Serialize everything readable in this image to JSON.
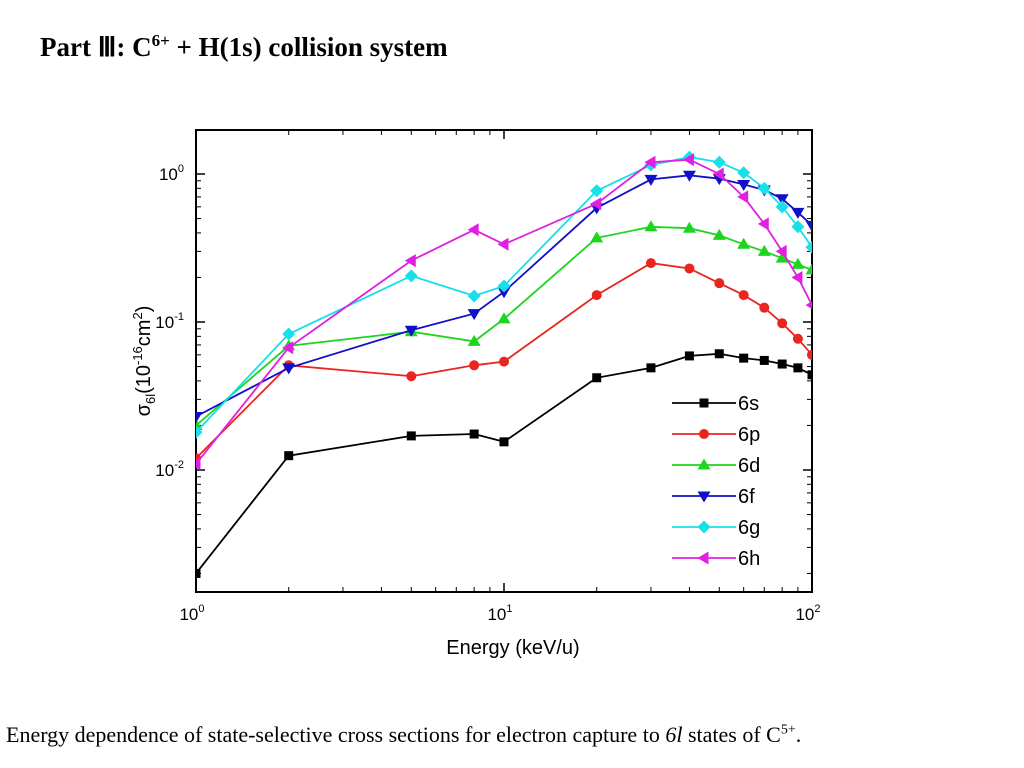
{
  "title": {
    "prefix": "Part Ⅲ: C",
    "sup": "6+",
    "suffix": " + H(1s) collision system"
  },
  "caption": {
    "prefix": "Energy dependence of state-selective cross sections for electron capture to ",
    "italic": "6l",
    "middle": " states of C",
    "sup": "5+",
    "suffix": "."
  },
  "chart_data": {
    "type": "line",
    "xscale": "log",
    "yscale": "log",
    "xlim": [
      1,
      100
    ],
    "ylim": [
      0.0015,
      2
    ],
    "xticks": [
      {
        "base": "10",
        "exp": "0"
      },
      {
        "base": "10",
        "exp": "1"
      },
      {
        "base": "10",
        "exp": "2"
      }
    ],
    "yticks": [
      {
        "base": "10",
        "exp": "0"
      },
      {
        "base": "10",
        "exp": "-1"
      },
      {
        "base": "10",
        "exp": "-2"
      }
    ],
    "xlabel": "Energy (keV/u)",
    "ylabel": {
      "sigma": "σ",
      "sub": "6l",
      "open": "(10",
      "exp": "-16",
      "unit": "cm",
      "unit_exp": "2",
      "close": ")"
    },
    "legend_position": "bottom-right",
    "grid": false,
    "series": [
      {
        "name": "6s",
        "color": "#000000",
        "marker": "square",
        "x": [
          1,
          2,
          5,
          8,
          10,
          20,
          30,
          40,
          50,
          60,
          70,
          80,
          90,
          100
        ],
        "y": [
          0.002,
          0.0125,
          0.017,
          0.0175,
          0.0155,
          0.042,
          0.049,
          0.059,
          0.061,
          0.057,
          0.055,
          0.052,
          0.049,
          0.044
        ]
      },
      {
        "name": "6p",
        "color": "#e8251f",
        "marker": "circle",
        "x": [
          1,
          2,
          5,
          8,
          10,
          20,
          30,
          40,
          50,
          60,
          70,
          80,
          90,
          100
        ],
        "y": [
          0.012,
          0.051,
          0.043,
          0.051,
          0.054,
          0.152,
          0.25,
          0.23,
          0.183,
          0.152,
          0.125,
          0.098,
          0.077,
          0.06
        ]
      },
      {
        "name": "6d",
        "color": "#1fd41f",
        "marker": "triangle-up",
        "x": [
          1,
          2,
          5,
          8,
          10,
          20,
          30,
          40,
          50,
          60,
          70,
          80,
          90,
          100
        ],
        "y": [
          0.02,
          0.069,
          0.086,
          0.074,
          0.105,
          0.37,
          0.44,
          0.43,
          0.385,
          0.335,
          0.3,
          0.27,
          0.245,
          0.225
        ]
      },
      {
        "name": "6f",
        "color": "#1010c8",
        "marker": "triangle-down",
        "x": [
          1,
          2,
          5,
          8,
          10,
          20,
          30,
          40,
          50,
          60,
          70,
          80,
          90,
          100
        ],
        "y": [
          0.023,
          0.049,
          0.088,
          0.114,
          0.16,
          0.59,
          0.92,
          0.98,
          0.93,
          0.85,
          0.78,
          0.68,
          0.55,
          0.45
        ]
      },
      {
        "name": "6g",
        "color": "#18e0e8",
        "marker": "diamond",
        "x": [
          1,
          2,
          5,
          8,
          10,
          20,
          30,
          40,
          50,
          60,
          70,
          80,
          90,
          100
        ],
        "y": [
          0.018,
          0.083,
          0.205,
          0.15,
          0.175,
          0.77,
          1.15,
          1.3,
          1.2,
          1.02,
          0.8,
          0.6,
          0.44,
          0.32
        ]
      },
      {
        "name": "6h",
        "color": "#e020e0",
        "marker": "triangle-left",
        "x": [
          1,
          2,
          5,
          8,
          10,
          20,
          30,
          40,
          50,
          60,
          70,
          80,
          90,
          100
        ],
        "y": [
          0.011,
          0.067,
          0.26,
          0.42,
          0.335,
          0.63,
          1.2,
          1.25,
          1.0,
          0.7,
          0.46,
          0.3,
          0.2,
          0.13
        ]
      }
    ]
  }
}
